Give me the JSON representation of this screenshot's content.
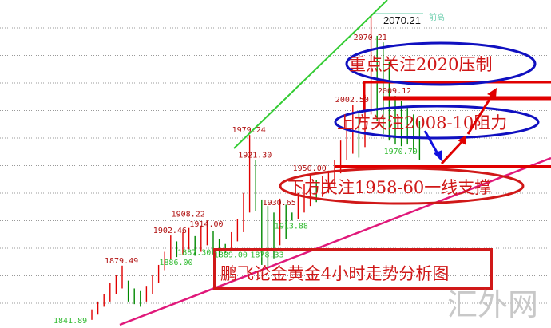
{
  "chart_data": {
    "type": "ohlc-bar",
    "title": "鹏飞论金黄金4小时走势分析图",
    "ylim": [
      1838,
      2082
    ],
    "grid": true,
    "colors": {
      "up": "#e00000",
      "down": "#008800",
      "grid": "#999999",
      "support_line": "#e0187a",
      "trend_line": "#33cc33",
      "zone": "#e00000",
      "ellipse_blue": "#1010c0",
      "ellipse_red": "#d01818"
    },
    "bars": [
      [
        1846,
        1838
      ],
      [
        1852,
        1842
      ],
      [
        1858,
        1848
      ],
      [
        1866,
        1852
      ],
      [
        1872,
        1858
      ],
      [
        1879.49,
        1862
      ],
      [
        1868,
        1852
      ],
      [
        1862,
        1850
      ],
      [
        1860,
        1848
      ],
      [
        1864,
        1852
      ],
      [
        1872,
        1858
      ],
      [
        1880,
        1866
      ],
      [
        1890,
        1876
      ],
      [
        1902.46,
        1884
      ],
      [
        1898,
        1886
      ],
      [
        1905,
        1888
      ],
      [
        1908.22,
        1892
      ],
      [
        1902,
        1887
      ],
      [
        1910,
        1890
      ],
      [
        1914,
        1895
      ],
      [
        1906,
        1888
      ],
      [
        1900,
        1886
      ],
      [
        1896,
        1889
      ],
      [
        1905,
        1892
      ],
      [
        1915,
        1898
      ],
      [
        1935,
        1905
      ],
      [
        1979.24,
        1920
      ],
      [
        1960,
        1921.3
      ],
      [
        1930,
        1880
      ],
      [
        1925,
        1878.33
      ],
      [
        1920,
        1885
      ],
      [
        1930.65,
        1895
      ],
      [
        1926,
        1900
      ],
      [
        1920,
        1913.88
      ],
      [
        1935,
        1915
      ],
      [
        1942,
        1920
      ],
      [
        1950,
        1925
      ],
      [
        1945,
        1928
      ],
      [
        1948,
        1932
      ],
      [
        1952,
        1935
      ],
      [
        1960,
        1940
      ],
      [
        1975,
        1950
      ],
      [
        1990,
        1960
      ],
      [
        2002.5,
        1965
      ],
      [
        1998,
        1962
      ],
      [
        2010,
        1970
      ],
      [
        2070.21,
        1995
      ],
      [
        2055,
        1990
      ],
      [
        2050,
        1980
      ],
      [
        2035,
        1975
      ],
      [
        2009.12,
        1972
      ],
      [
        2005,
        1970.7
      ],
      [
        2000,
        1972
      ],
      [
        1995,
        1965
      ],
      [
        1990,
        1960
      ]
    ],
    "price_labels": [
      {
        "bar": 1,
        "value": "1841.89",
        "kind": "low"
      },
      {
        "bar": 6,
        "value": "1879.49",
        "kind": "high"
      },
      {
        "bar": 14,
        "value": "1902.46",
        "kind": "high"
      },
      {
        "bar": 17,
        "value": "1908.22",
        "kind": "high"
      },
      {
        "bar": 20,
        "value": "1914.00",
        "kind": "high"
      },
      {
        "bar": 15,
        "value": "1886.00",
        "kind": "low"
      },
      {
        "bar": 18,
        "value": "1887.30",
        "kind": "low"
      },
      {
        "bar": 24,
        "value": "1889.00",
        "kind": "low"
      },
      {
        "bar": 27,
        "value": "1979.24",
        "kind": "high"
      },
      {
        "bar": 28,
        "value": "1921.30",
        "kind": "high"
      },
      {
        "bar": 30,
        "value": "1878.33",
        "kind": "low"
      },
      {
        "bar": 32,
        "value": "1930.65",
        "kind": "high"
      },
      {
        "bar": 34,
        "value": "1913.88",
        "kind": "low"
      },
      {
        "bar": 37,
        "value": "1950.00",
        "kind": "high"
      },
      {
        "bar": 44,
        "value": "2002.50",
        "kind": "high"
      },
      {
        "bar": 47,
        "value": "2070.21",
        "kind": "high"
      },
      {
        "bar": 51,
        "value": "2009.12",
        "kind": "high"
      },
      {
        "bar": 52,
        "value": "1970.70",
        "kind": "low"
      }
    ],
    "prev_high": {
      "value": "2070.21",
      "label": "前高"
    },
    "annotations": {
      "resistance_key": "重点关注2020压制",
      "resistance": "上方关注2008-10阻力",
      "support": "下方关注1958-60一线支撑",
      "title_box": "鹏飞论金黄金4小时走势分析图"
    },
    "zones": [
      2020,
      2009,
      1960
    ],
    "watermark": "汇外网"
  }
}
